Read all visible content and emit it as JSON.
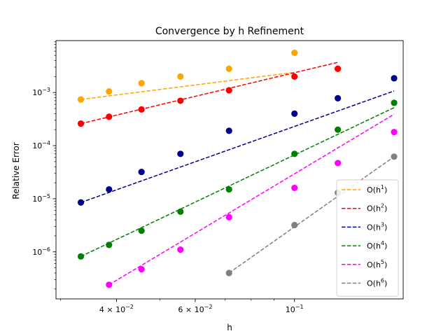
{
  "chart_data": {
    "type": "scatter",
    "title": "Convergence by h Refinement",
    "xlabel": "h",
    "ylabel": "Relative Error",
    "xscale": "log",
    "yscale": "log",
    "xlim": [
      0.0293,
      0.175
    ],
    "ylim": [
      1.3e-07,
      0.0095
    ],
    "grid": false,
    "legend_position": "lower-right",
    "x_tick_labels": [
      {
        "value": 0.04,
        "mantissa": "4",
        "base": "10",
        "exp": "−2"
      },
      {
        "value": 0.06,
        "mantissa": "6",
        "base": "10",
        "exp": "−2"
      },
      {
        "value": 0.1,
        "mantissa": "",
        "base": "10",
        "exp": "−1"
      }
    ],
    "y_tick_labels": [
      {
        "value": 1e-06,
        "base": "10",
        "exp": "−6"
      },
      {
        "value": 1e-05,
        "base": "10",
        "exp": "−5"
      },
      {
        "value": 0.0001,
        "base": "10",
        "exp": "−4"
      },
      {
        "value": 0.001,
        "base": "10",
        "exp": "−3"
      }
    ],
    "series": [
      {
        "name": "O(h1)",
        "base": "O(h",
        "power": "1",
        "color": "#FFA500",
        "points": [
          [
            0.0333,
            0.00074
          ],
          [
            0.0385,
            0.00105
          ],
          [
            0.0455,
            0.0015
          ],
          [
            0.0556,
            0.002
          ],
          [
            0.0714,
            0.0028
          ],
          [
            0.1,
            0.0056
          ],
          [
            0.125,
            0.0028
          ],
          [
            0.167,
            0.00185
          ]
        ],
        "line": {
          "x": [
            0.0333,
            0.1
          ],
          "y": [
            0.00074,
            0.0024
          ]
        }
      },
      {
        "name": "O(h2)",
        "base": "O(h",
        "power": "2",
        "color": "#FF0000",
        "points": [
          [
            0.0333,
            0.00026
          ],
          [
            0.0385,
            0.00035
          ],
          [
            0.0455,
            0.00048
          ],
          [
            0.0556,
            0.0007
          ],
          [
            0.0714,
            0.0011
          ],
          [
            0.1,
            0.002
          ],
          [
            0.125,
            0.0028
          ]
        ],
        "line": {
          "x": [
            0.0333,
            0.125
          ],
          "y": [
            0.00026,
            0.0037
          ]
        }
      },
      {
        "name": "O(h3)",
        "base": "O(h",
        "power": "3",
        "color": "#00008B",
        "points": [
          [
            0.0333,
            8.5e-06
          ],
          [
            0.0385,
            1.5e-05
          ],
          [
            0.0455,
            3.2e-05
          ],
          [
            0.0556,
            7e-05
          ],
          [
            0.0714,
            0.00019
          ],
          [
            0.1,
            0.0004
          ],
          [
            0.125,
            0.00078
          ],
          [
            0.167,
            0.00185
          ]
        ],
        "line": {
          "x": [
            0.0333,
            0.167
          ],
          "y": [
            8.5e-06,
            0.00107
          ]
        }
      },
      {
        "name": "O(h4)",
        "base": "O(h",
        "power": "4",
        "color": "#008000",
        "points": [
          [
            0.0333,
            8.2e-07
          ],
          [
            0.0385,
            1.35e-06
          ],
          [
            0.0455,
            2.5e-06
          ],
          [
            0.0556,
            5.7e-06
          ],
          [
            0.0714,
            1.5e-05
          ],
          [
            0.1,
            7e-05
          ],
          [
            0.125,
            0.0002
          ],
          [
            0.167,
            0.00064
          ]
        ],
        "line": {
          "x": [
            0.0333,
            0.167
          ],
          "y": [
            8.2e-07,
            0.00052
          ]
        }
      },
      {
        "name": "O(h5)",
        "base": "O(h",
        "power": "5",
        "color": "#FF00FF",
        "points": [
          [
            0.0385,
            2.4e-07
          ],
          [
            0.0455,
            4.7e-07
          ],
          [
            0.0556,
            1.1e-06
          ],
          [
            0.0714,
            4.5e-06
          ],
          [
            0.1,
            1.6e-05
          ],
          [
            0.125,
            4.7e-05
          ],
          [
            0.167,
            0.00018
          ]
        ],
        "line": {
          "x": [
            0.0385,
            0.167
          ],
          "y": [
            2.4e-07,
            0.00039
          ]
        }
      },
      {
        "name": "O(h6)",
        "base": "O(h",
        "power": "6",
        "color": "#808080",
        "points": [
          [
            0.0714,
            4e-07
          ],
          [
            0.1,
            3.2e-06
          ],
          [
            0.125,
            1.3e-05
          ],
          [
            0.167,
            6.2e-05
          ]
        ],
        "line": {
          "x": [
            0.0714,
            0.167
          ],
          "y": [
            4e-07,
            6.2e-05
          ]
        }
      }
    ]
  }
}
